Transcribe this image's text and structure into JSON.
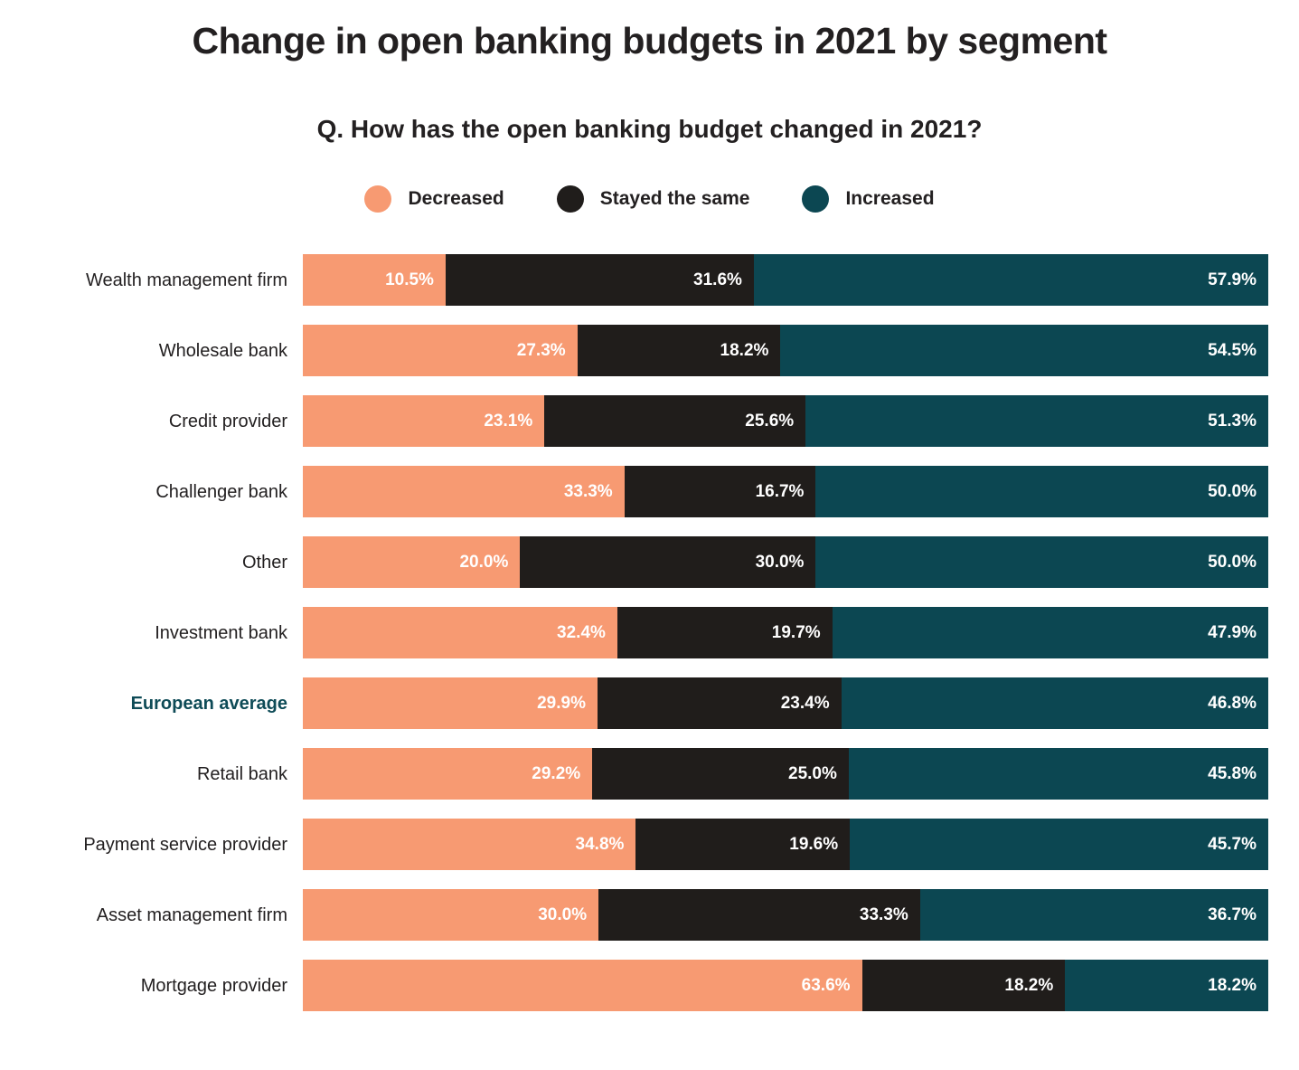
{
  "title": "Change in open banking budgets in 2021 by segment",
  "subtitle": "Q. How has the open banking budget changed in 2021?",
  "colors": {
    "decreased": "#F79A72",
    "stayed_same": "#201D1B",
    "increased": "#0C4752",
    "ink": "#232021",
    "highlight_label": "#0E4B57",
    "value_label": "#FFFFFF",
    "background": "#FFFFFF"
  },
  "legend": {
    "position": "top-center"
  },
  "chart_data": {
    "type": "bar",
    "orientation": "horizontal",
    "stacked": true,
    "value_unit": "percent",
    "x_range": [
      0,
      100
    ],
    "grid": false,
    "categories": [
      "Wealth management firm",
      "Wholesale bank",
      "Credit provider",
      "Challenger bank",
      "Other",
      "Investment bank",
      "European average",
      "Retail bank",
      "Payment service provider",
      "Asset management firm",
      "Mortgage provider"
    ],
    "highlighted_category": "European average",
    "series": [
      {
        "name": "Decreased",
        "color": "#F79A72",
        "values": [
          10.5,
          27.3,
          23.1,
          33.3,
          20.0,
          32.4,
          29.9,
          29.2,
          34.8,
          30.0,
          63.6
        ]
      },
      {
        "name": "Stayed the same",
        "color": "#201D1B",
        "values": [
          31.6,
          18.2,
          25.6,
          16.7,
          30.0,
          19.7,
          23.4,
          25.0,
          19.6,
          33.3,
          18.2
        ]
      },
      {
        "name": "Increased",
        "color": "#0C4752",
        "values": [
          57.9,
          54.5,
          51.3,
          50.0,
          50.0,
          47.9,
          46.8,
          45.8,
          45.7,
          36.7,
          18.2
        ]
      }
    ]
  }
}
